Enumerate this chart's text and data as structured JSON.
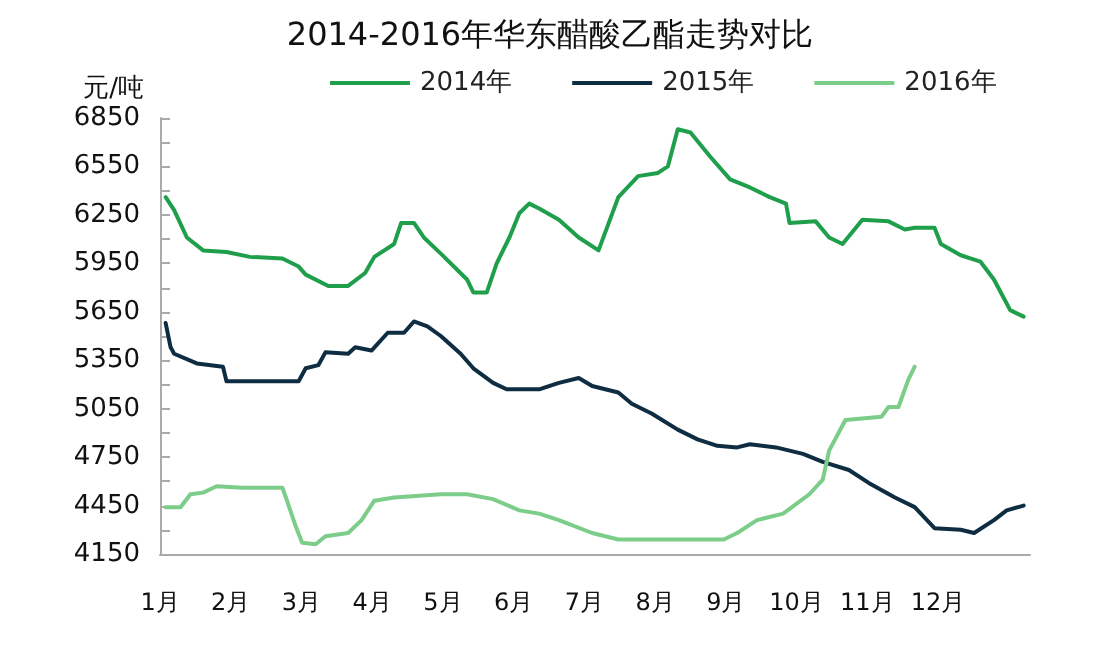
{
  "chart_data": {
    "type": "line",
    "title": "2014-2016年华东醋酸乙酯走势对比",
    "ylabel": "元/吨",
    "xlim": [
      1,
      13.3
    ],
    "xticks": [
      {
        "value": 1,
        "label": "1月"
      },
      {
        "value": 2,
        "label": "2月"
      },
      {
        "value": 3,
        "label": "3月"
      },
      {
        "value": 4,
        "label": "4月"
      },
      {
        "value": 5,
        "label": "5月"
      },
      {
        "value": 6,
        "label": "6月"
      },
      {
        "value": 7,
        "label": "7月"
      },
      {
        "value": 8,
        "label": "8月"
      },
      {
        "value": 9,
        "label": "9月"
      },
      {
        "value": 10,
        "label": "10月"
      },
      {
        "value": 11,
        "label": "11月"
      },
      {
        "value": 12,
        "label": "12月"
      }
    ],
    "ylim": [
      4150,
      6850
    ],
    "yticks": [
      4150,
      {
        "value": 4300,
        "label": null
      },
      4450,
      {
        "value": 4600,
        "label": null
      },
      4750,
      {
        "value": 4900,
        "label": null
      },
      5050,
      {
        "value": 5200,
        "label": null
      },
      5350,
      {
        "value": 5500,
        "label": null
      },
      5650,
      {
        "value": 5800,
        "label": null
      },
      5950,
      {
        "value": 6100,
        "label": null
      },
      6250,
      {
        "value": 6400,
        "label": null
      },
      6550,
      {
        "value": 6700,
        "label": null
      },
      6850
    ],
    "grid": false,
    "legend": "top",
    "marker": "none",
    "line_style": "solid",
    "series": [
      {
        "name": "2014年",
        "color": "#1f9e4c",
        "x": [
          1.08,
          1.2,
          1.38,
          1.61,
          1.94,
          2.27,
          2.73,
          2.96,
          3.06,
          3.38,
          3.66,
          3.9,
          4.03,
          4.31,
          4.41,
          4.59,
          4.73,
          4.97,
          5.34,
          5.43,
          5.62,
          5.76,
          5.94,
          6.08,
          6.22,
          6.36,
          6.64,
          6.92,
          7.2,
          7.48,
          7.76,
          8.04,
          8.18,
          8.32,
          8.5,
          8.78,
          9.06,
          9.34,
          9.62,
          9.85,
          9.9,
          10.27,
          10.46,
          10.65,
          10.93,
          11.3,
          11.53,
          11.67,
          11.95,
          12.04,
          12.32,
          12.6,
          12.79,
          13.02,
          13.21
        ],
        "values": [
          6360,
          6280,
          6110,
          6030,
          6020,
          5990,
          5980,
          5930,
          5880,
          5810,
          5810,
          5890,
          5990,
          6070,
          6200,
          6200,
          6110,
          6010,
          5850,
          5770,
          5770,
          5950,
          6110,
          6260,
          6320,
          6290,
          6220,
          6110,
          6030,
          6360,
          6490,
          6510,
          6550,
          6780,
          6760,
          6610,
          6470,
          6420,
          6360,
          6320,
          6200,
          6210,
          6110,
          6070,
          6220,
          6210,
          6160,
          6170,
          6170,
          6070,
          6000,
          5960,
          5850,
          5660,
          5620
        ]
      },
      {
        "name": "2015年",
        "color": "#0f2d42",
        "x": [
          1.08,
          1.15,
          1.2,
          1.52,
          1.89,
          1.94,
          2.96,
          3.06,
          3.24,
          3.34,
          3.66,
          3.76,
          3.99,
          4.22,
          4.45,
          4.59,
          4.78,
          4.97,
          5.25,
          5.43,
          5.71,
          5.9,
          6.36,
          6.64,
          6.92,
          7.11,
          7.48,
          7.67,
          7.95,
          8.32,
          8.6,
          8.88,
          9.16,
          9.34,
          9.71,
          10.09,
          10.37,
          10.74,
          11.02,
          11.39,
          11.67,
          11.95,
          12.32,
          12.51,
          12.79,
          12.97,
          13.21
        ],
        "values": [
          5580,
          5430,
          5390,
          5330,
          5310,
          5220,
          5220,
          5300,
          5320,
          5400,
          5390,
          5430,
          5410,
          5520,
          5520,
          5590,
          5560,
          5500,
          5390,
          5300,
          5210,
          5170,
          5170,
          5210,
          5240,
          5190,
          5150,
          5080,
          5020,
          4920,
          4860,
          4820,
          4810,
          4830,
          4810,
          4770,
          4720,
          4670,
          4590,
          4500,
          4440,
          4310,
          4300,
          4280,
          4360,
          4420,
          4450
        ]
      },
      {
        "name": "2016年",
        "color": "#7ccd8a",
        "x": [
          1.08,
          1.29,
          1.43,
          1.61,
          1.8,
          2.17,
          2.73,
          2.78,
          2.92,
          3.01,
          3.2,
          3.34,
          3.66,
          3.85,
          4.03,
          4.31,
          4.97,
          5.34,
          5.71,
          6.08,
          6.36,
          6.64,
          7.11,
          7.48,
          8.24,
          8.6,
          8.97,
          9.16,
          9.44,
          9.81,
          10.18,
          10.37,
          10.46,
          10.69,
          11.2,
          11.3,
          11.44,
          11.58,
          11.67
        ],
        "values": [
          4440,
          4440,
          4520,
          4530,
          4570,
          4560,
          4560,
          4500,
          4320,
          4220,
          4210,
          4260,
          4280,
          4360,
          4480,
          4500,
          4520,
          4520,
          4490,
          4420,
          4400,
          4360,
          4280,
          4240,
          4240,
          4240,
          4240,
          4280,
          4360,
          4400,
          4520,
          4610,
          4790,
          4980,
          5000,
          5060,
          5060,
          5230,
          5310
        ]
      }
    ]
  }
}
